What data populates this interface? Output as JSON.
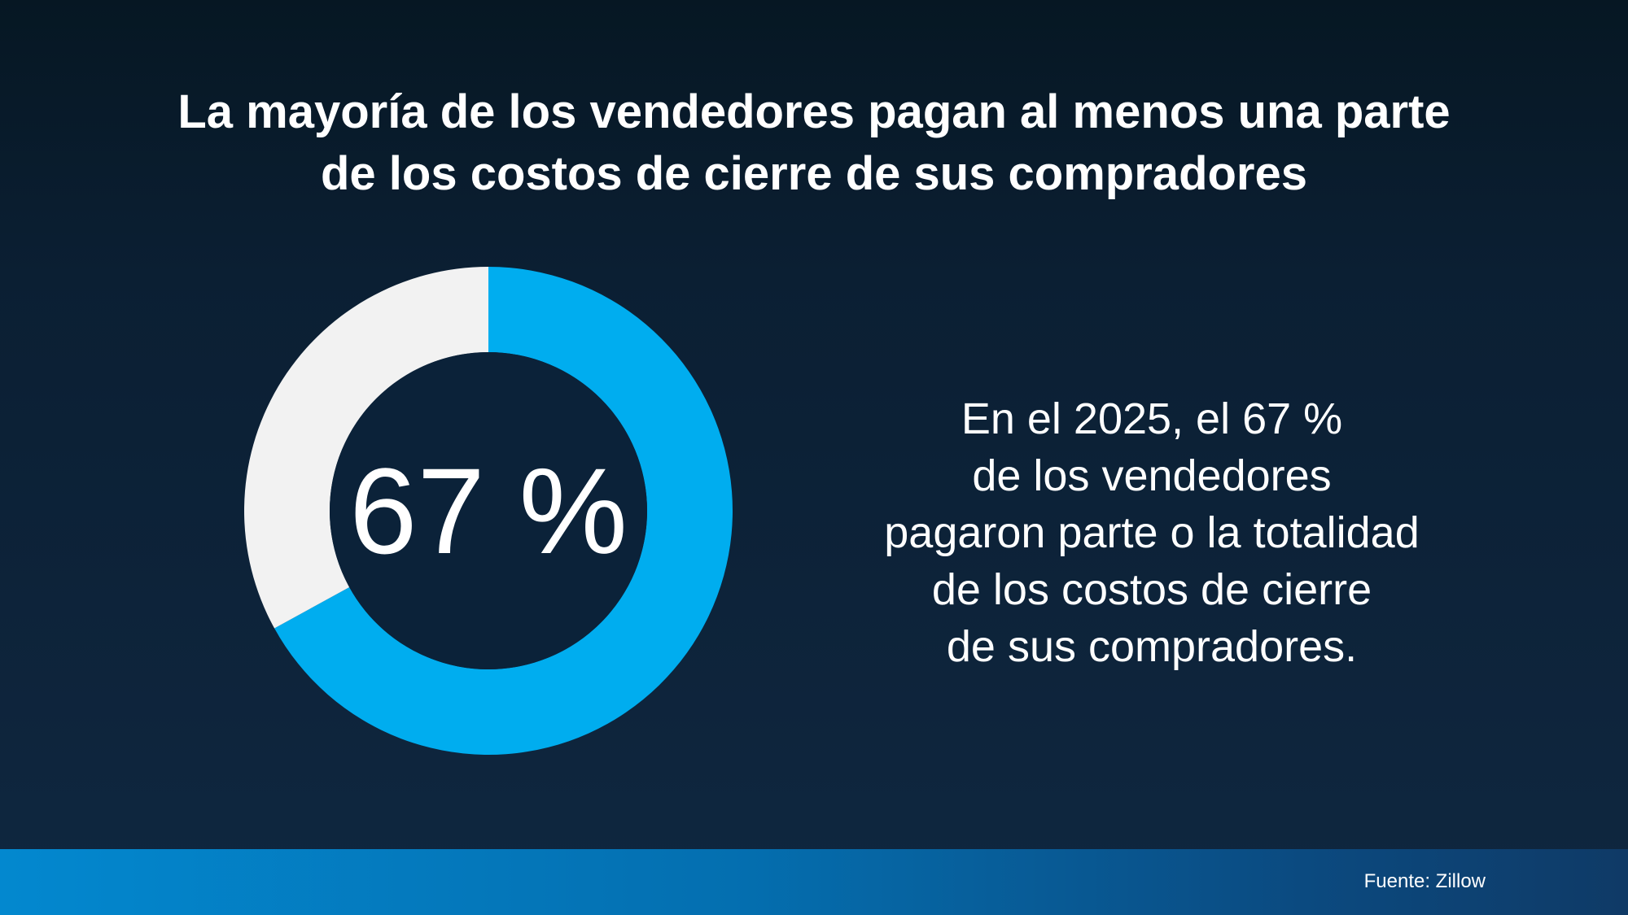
{
  "title": {
    "line1": "La mayoría de los vendedores pagan al menos una parte",
    "line2": "de los costos de cierre de sus compradores"
  },
  "chart_data": {
    "type": "pie",
    "variant": "donut",
    "slices": [
      {
        "label": "",
        "value": 67,
        "color": "#00adef"
      },
      {
        "label": "",
        "value": 33,
        "color": "#f2f2f2"
      }
    ],
    "center_label": "67 %"
  },
  "description": {
    "lines": [
      "En el 2025, el 67 %",
      "de los vendedores",
      "pagaron parte o la totalidad",
      "de los costos de cierre",
      "de sus compradores."
    ]
  },
  "footer": {
    "source": "Fuente: Zillow"
  },
  "colors": {
    "background": "#0b1f33",
    "accent": "#00adef",
    "remainder": "#f2f2f2",
    "footer_bar": "#046fb0"
  }
}
